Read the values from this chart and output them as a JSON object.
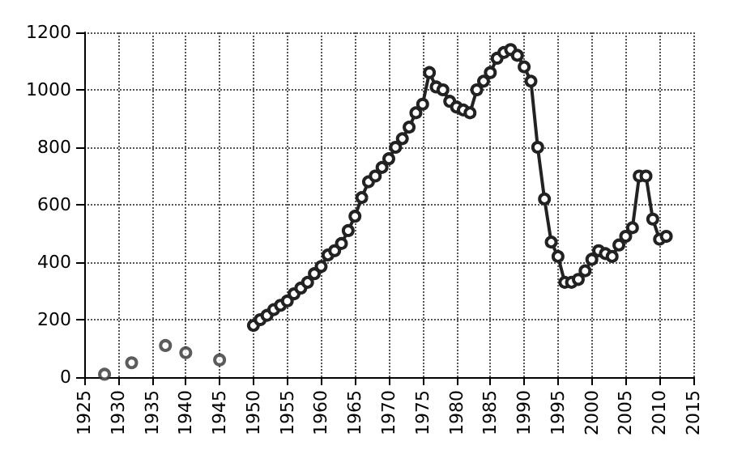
{
  "chart_data": {
    "type": "line",
    "xlim": [
      1925,
      2015
    ],
    "xticks": [
      1925,
      1930,
      1935,
      1940,
      1945,
      1950,
      1955,
      1960,
      1965,
      1970,
      1975,
      1980,
      1985,
      1990,
      1995,
      2000,
      2005,
      2010,
      2015
    ],
    "ylim": [
      0,
      1200
    ],
    "yticks": [
      0,
      200,
      400,
      600,
      800,
      1000,
      1200
    ],
    "grid": true,
    "marker": "circle",
    "line_style": "solid",
    "series": [
      {
        "type": "scatter",
        "color": "#333333",
        "x": [
          1928,
          1932,
          1937,
          1940,
          1945
        ],
        "values": [
          10,
          50,
          110,
          85,
          60
        ]
      },
      {
        "color": "#222222",
        "x": [
          1950,
          1951,
          1952,
          1953,
          1954,
          1955,
          1956,
          1957,
          1958,
          1959,
          1960,
          1961,
          1962,
          1963,
          1964,
          1965,
          1966,
          1967,
          1968,
          1969,
          1970,
          1971,
          1972,
          1973,
          1974,
          1975,
          1976,
          1977,
          1978,
          1979,
          1980,
          1981,
          1982,
          1983,
          1984,
          1985,
          1986,
          1987,
          1988,
          1989,
          1990,
          1991,
          1992,
          1993,
          1994,
          1995,
          1996,
          1997,
          1998,
          1999,
          2000,
          2001,
          2002,
          2003,
          2004,
          2005,
          2006,
          2007,
          2008,
          2009,
          2010,
          2011
        ],
        "values": [
          180,
          200,
          215,
          235,
          250,
          265,
          290,
          310,
          330,
          360,
          385,
          425,
          440,
          465,
          510,
          560,
          625,
          680,
          700,
          730,
          760,
          800,
          830,
          870,
          920,
          950,
          1060,
          1010,
          1000,
          960,
          940,
          930,
          920,
          1000,
          1030,
          1060,
          1110,
          1130,
          1140,
          1120,
          1080,
          1030,
          800,
          620,
          470,
          420,
          330,
          330,
          340,
          370,
          410,
          440,
          430,
          420,
          460,
          490,
          520,
          700,
          700,
          550,
          480,
          490
        ]
      }
    ]
  }
}
